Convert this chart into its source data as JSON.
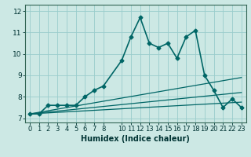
{
  "xlabel": "Humidex (Indice chaleur)",
  "background_color": "#cce8e4",
  "grid_color": "#99cccc",
  "line_color": "#006666",
  "xlim": [
    -0.5,
    23.5
  ],
  "ylim": [
    6.8,
    12.3
  ],
  "lines": [
    {
      "x": [
        0,
        1,
        2,
        3,
        4,
        5,
        6,
        7,
        8,
        10,
        11,
        12,
        13,
        14,
        15,
        16,
        17,
        18,
        19,
        20,
        21,
        22,
        23
      ],
      "y": [
        7.2,
        7.2,
        7.6,
        7.6,
        7.6,
        7.6,
        8.0,
        8.3,
        8.5,
        9.7,
        10.8,
        11.7,
        10.5,
        10.3,
        10.5,
        9.8,
        10.8,
        11.1,
        9.0,
        8.3,
        7.5,
        7.9,
        7.5
      ],
      "marker": true,
      "linewidth": 1.2
    },
    {
      "x": [
        0,
        23
      ],
      "y": [
        7.2,
        8.9
      ],
      "marker": false,
      "linewidth": 0.9
    },
    {
      "x": [
        0,
        23
      ],
      "y": [
        7.2,
        8.2
      ],
      "marker": false,
      "linewidth": 0.9
    },
    {
      "x": [
        0,
        23
      ],
      "y": [
        7.2,
        7.75
      ],
      "marker": false,
      "linewidth": 0.9
    }
  ],
  "yticks": [
    7,
    8,
    9,
    10,
    11,
    12
  ],
  "ytick_labels": [
    "7",
    "8",
    "9",
    "10",
    "11",
    "12"
  ],
  "xtick_vals": [
    0,
    1,
    2,
    3,
    4,
    5,
    6,
    7,
    8,
    10,
    11,
    12,
    13,
    14,
    15,
    16,
    17,
    18,
    19,
    20,
    21,
    22,
    23
  ],
  "xtick_labels": [
    "0",
    "1",
    "2",
    "3",
    "4",
    "5",
    "6",
    "7",
    "8",
    "10",
    "11",
    "12",
    "13",
    "14",
    "15",
    "16",
    "17",
    "18",
    "19",
    "20",
    "21",
    "22",
    "23"
  ],
  "xlabel_fontsize": 7,
  "tick_fontsize": 6,
  "ytick_fontsize": 6.5
}
